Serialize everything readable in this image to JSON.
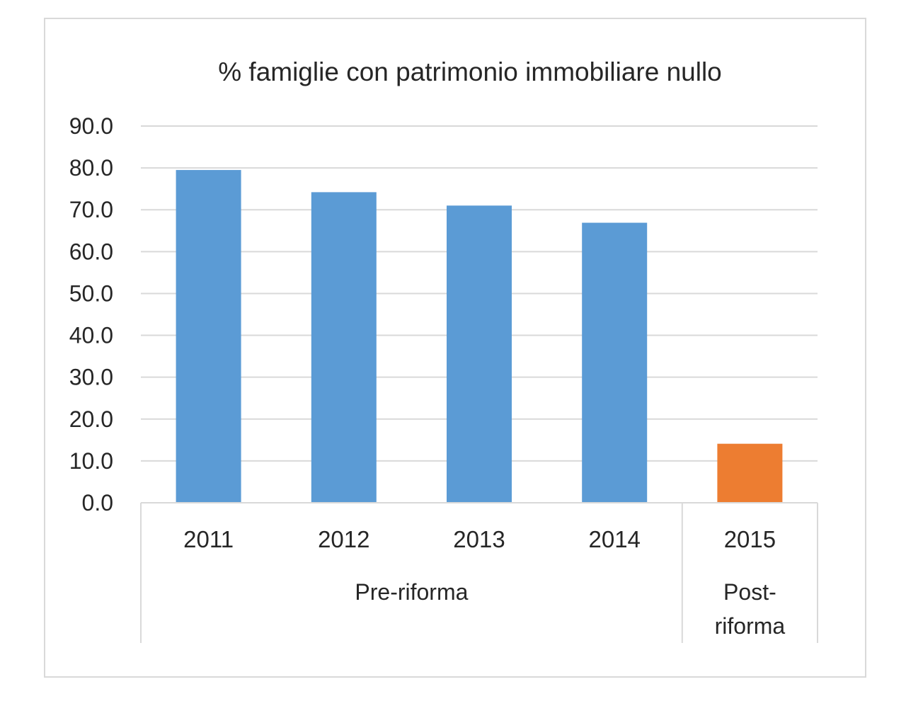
{
  "chart_data": {
    "type": "bar",
    "title": "% famiglie con patrimonio immobiliare nullo",
    "categories": [
      "2011",
      "2012",
      "2013",
      "2014",
      "2015"
    ],
    "groups": [
      {
        "label": "Pre-riforma",
        "categories": [
          "2011",
          "2012",
          "2013",
          "2014"
        ]
      },
      {
        "label": "Post-\nriforma",
        "categories": [
          "2015"
        ]
      }
    ],
    "series": [
      {
        "values": [
          79.5,
          74.2,
          71.0,
          66.9,
          14.1
        ]
      }
    ],
    "bar_colors": [
      "#5b9bd5",
      "#5b9bd5",
      "#5b9bd5",
      "#5b9bd5",
      "#ed7d31"
    ],
    "yticks": [
      "0.0",
      "10.0",
      "20.0",
      "30.0",
      "40.0",
      "50.0",
      "60.0",
      "70.0",
      "80.0",
      "90.0"
    ],
    "ylim": [
      0,
      90
    ],
    "grid": true,
    "xlabel": "",
    "ylabel": ""
  },
  "colors": {
    "gridline": "#d9d9d9",
    "frame": "#d9d9d9",
    "text": "#262626"
  }
}
